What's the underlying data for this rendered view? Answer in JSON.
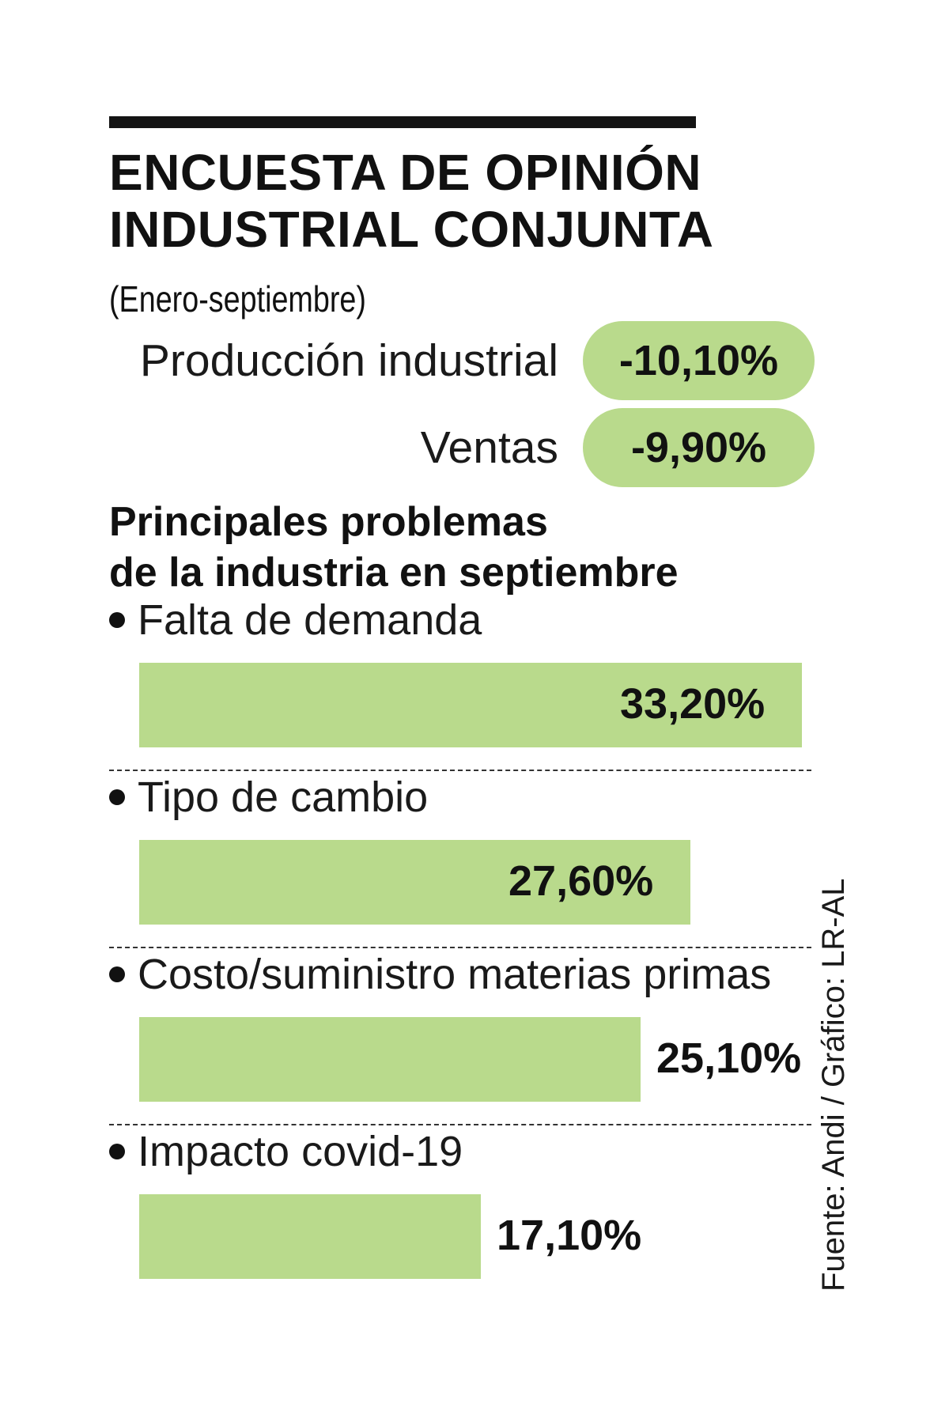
{
  "header": {
    "title_line1": "ENCUESTA DE OPINIÓN",
    "title_line2": "INDUSTRIAL CONJUNTA",
    "subtitle": "(Enero-septiembre)"
  },
  "kpis": [
    {
      "label": "Producción industrial",
      "value": "-10,10%"
    },
    {
      "label": "Ventas",
      "value": "-9,90%"
    }
  ],
  "section": {
    "title_line1": "Principales problemas",
    "title_line2": "de la industria en septiembre"
  },
  "chart_data": {
    "type": "bar",
    "orientation": "horizontal",
    "title": "Principales problemas de la industria en septiembre",
    "categories": [
      "Falta de demanda",
      "Tipo de cambio",
      "Costo/suministro materias primas",
      "Impacto covid-19"
    ],
    "values": [
      33.2,
      27.6,
      25.1,
      17.1
    ],
    "value_labels": [
      "33,20%",
      "27,60%",
      "25,10%",
      "17,10%"
    ],
    "xlim": [
      0,
      40
    ],
    "unit": "%",
    "bar_color": "#b9da8c"
  },
  "source": "Fuente: Andi / Gráfico: LR-AL"
}
